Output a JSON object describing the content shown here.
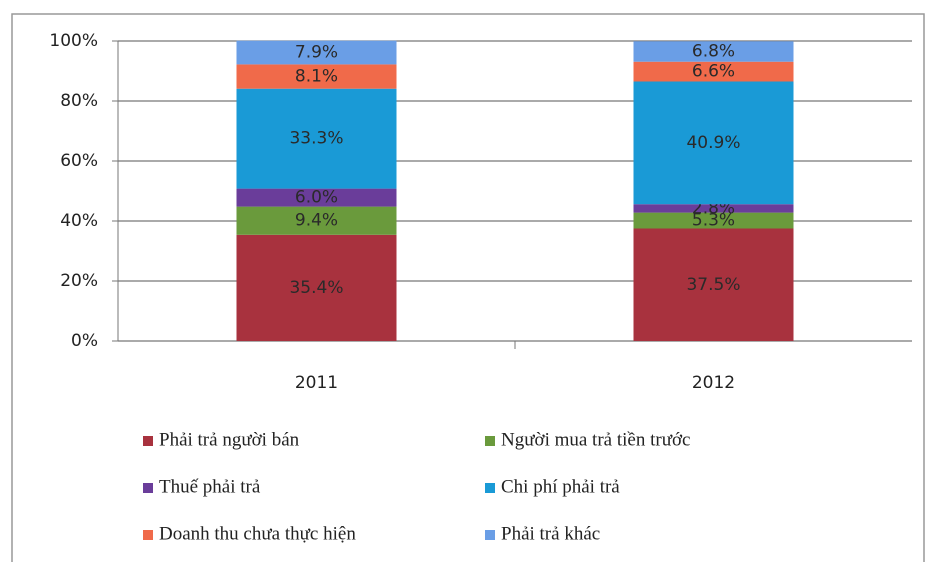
{
  "chart_data": {
    "type": "stacked_bar",
    "categories": [
      "2011",
      "2012"
    ],
    "series": [
      {
        "name": "Phải trả người bán",
        "color": "#a8323e",
        "values": [
          35.4,
          37.5
        ],
        "value_labels": [
          "35.4%",
          "37.5%"
        ]
      },
      {
        "name": "Người mua trả tiền trước",
        "color": "#6a9a3c",
        "values": [
          9.4,
          5.3
        ],
        "value_labels": [
          "9.4%",
          "5.3%"
        ]
      },
      {
        "name": "Thuế phải trả",
        "color": "#6a3d9a",
        "values": [
          6.0,
          2.8
        ],
        "value_labels": [
          "6.0%",
          "2.8%"
        ]
      },
      {
        "name": "Chi phí phải trả",
        "color": "#1a9ad6",
        "values": [
          33.3,
          40.9
        ],
        "value_labels": [
          "33.3%",
          "40.9%"
        ]
      },
      {
        "name": "Doanh thu chưa thực hiện",
        "color": "#f06a4a",
        "values": [
          8.1,
          6.6
        ],
        "value_labels": [
          "8.1%",
          "6.6%"
        ]
      },
      {
        "name": "Phải trả khác",
        "color": "#6a9ee6",
        "values": [
          7.9,
          6.8
        ],
        "value_labels": [
          "7.9%",
          "6.8%"
        ]
      }
    ],
    "ylim": [
      0,
      100
    ],
    "yticks": [
      {
        "value": 0,
        "label": "0%"
      },
      {
        "value": 20,
        "label": "20%"
      },
      {
        "value": 40,
        "label": "40%"
      },
      {
        "value": 60,
        "label": "60%"
      },
      {
        "value": 80,
        "label": "80%"
      },
      {
        "value": 100,
        "label": "100%"
      }
    ],
    "grid": true
  }
}
